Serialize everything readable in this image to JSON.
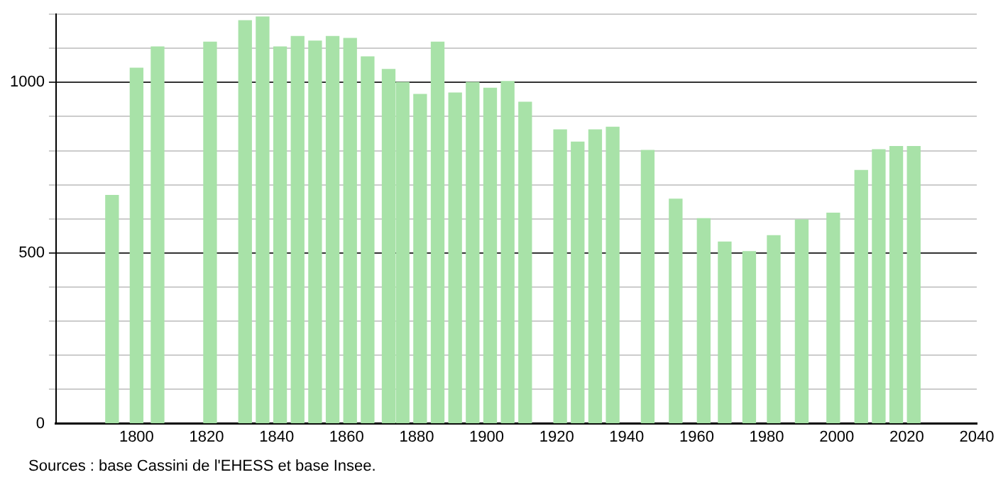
{
  "chart_data": {
    "type": "bar",
    "color": "#a8e2a8",
    "x": [
      1793,
      1800,
      1806,
      1821,
      1831,
      1836,
      1841,
      1846,
      1851,
      1856,
      1861,
      1866,
      1872,
      1876,
      1881,
      1886,
      1891,
      1896,
      1901,
      1906,
      1911,
      1921,
      1926,
      1931,
      1936,
      1946,
      1954,
      1962,
      1968,
      1975,
      1982,
      1990,
      1999,
      2007,
      2012,
      2017,
      2022
    ],
    "values": [
      669,
      1042,
      1104,
      1118,
      1181,
      1192,
      1104,
      1135,
      1121,
      1135,
      1129,
      1075,
      1038,
      1000,
      965,
      1118,
      969,
      1000,
      983,
      1003,
      942,
      861,
      825,
      861,
      869,
      801,
      658,
      601,
      532,
      504,
      551,
      597,
      617,
      742,
      803,
      812,
      812
    ],
    "xlim": [
      1777,
      2040
    ],
    "xticks": [
      1800,
      1820,
      1840,
      1860,
      1880,
      1900,
      1920,
      1940,
      1960,
      1980,
      2000,
      2020,
      2040
    ],
    "ylim": [
      0,
      1200
    ],
    "yticks": [
      0,
      {
        "value": 100,
        "label": null
      },
      {
        "value": 200,
        "label": null
      },
      {
        "value": 300,
        "label": null
      },
      {
        "value": 400,
        "label": null
      },
      500,
      {
        "value": 600,
        "label": null
      },
      {
        "value": 700,
        "label": null
      },
      {
        "value": 800,
        "label": null
      },
      {
        "value": 900,
        "label": null
      },
      1000,
      {
        "value": 1100,
        "label": null
      },
      {
        "value": 1200,
        "label": null
      }
    ],
    "grid": "y",
    "legend": false,
    "annotations": [
      "Sources : base Cassini de l'EHESS et base Insee."
    ]
  }
}
